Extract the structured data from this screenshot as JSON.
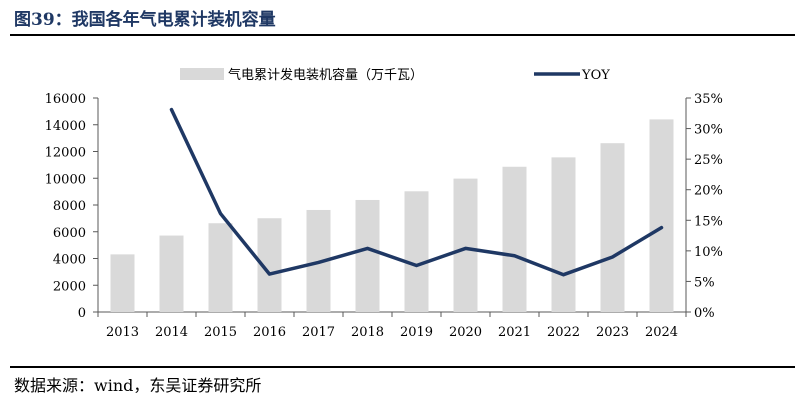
{
  "figure": {
    "title": "图39：我国各年气电累计装机容量",
    "source": "数据来源：wind，东吴证券研究所"
  },
  "colors": {
    "title": "#1f3864",
    "bar": "#d9d9d9",
    "line": "#1f3864",
    "axis": "#595959"
  },
  "chart_data": {
    "type": "bar",
    "categories": [
      "2013",
      "2014",
      "2015",
      "2016",
      "2017",
      "2018",
      "2019",
      "2020",
      "2021",
      "2022",
      "2023",
      "2024"
    ],
    "series": [
      {
        "name": "气电累计发电装机容量（万千瓦）",
        "type": "bar",
        "axis": "left",
        "values": [
          4309,
          5715,
          6637,
          7011,
          7629,
          8375,
          9024,
          9972,
          10859,
          11561,
          12620,
          14400
        ]
      },
      {
        "name": "YOY",
        "type": "line",
        "axis": "right",
        "values": [
          null,
          0.331,
          0.161,
          0.062,
          0.081,
          0.104,
          0.076,
          0.104,
          0.092,
          0.061,
          0.09,
          0.138
        ]
      }
    ],
    "y_left": {
      "lim": [
        0,
        16000
      ],
      "ticks": [
        "0",
        "2000",
        "4000",
        "6000",
        "8000",
        "10000",
        "12000",
        "14000",
        "16000"
      ]
    },
    "y_right": {
      "lim": [
        0,
        0.35
      ],
      "ticks": [
        "0%",
        "5%",
        "10%",
        "15%",
        "20%",
        "25%",
        "30%",
        "35%"
      ]
    },
    "legend_position": "top",
    "grid": false
  }
}
